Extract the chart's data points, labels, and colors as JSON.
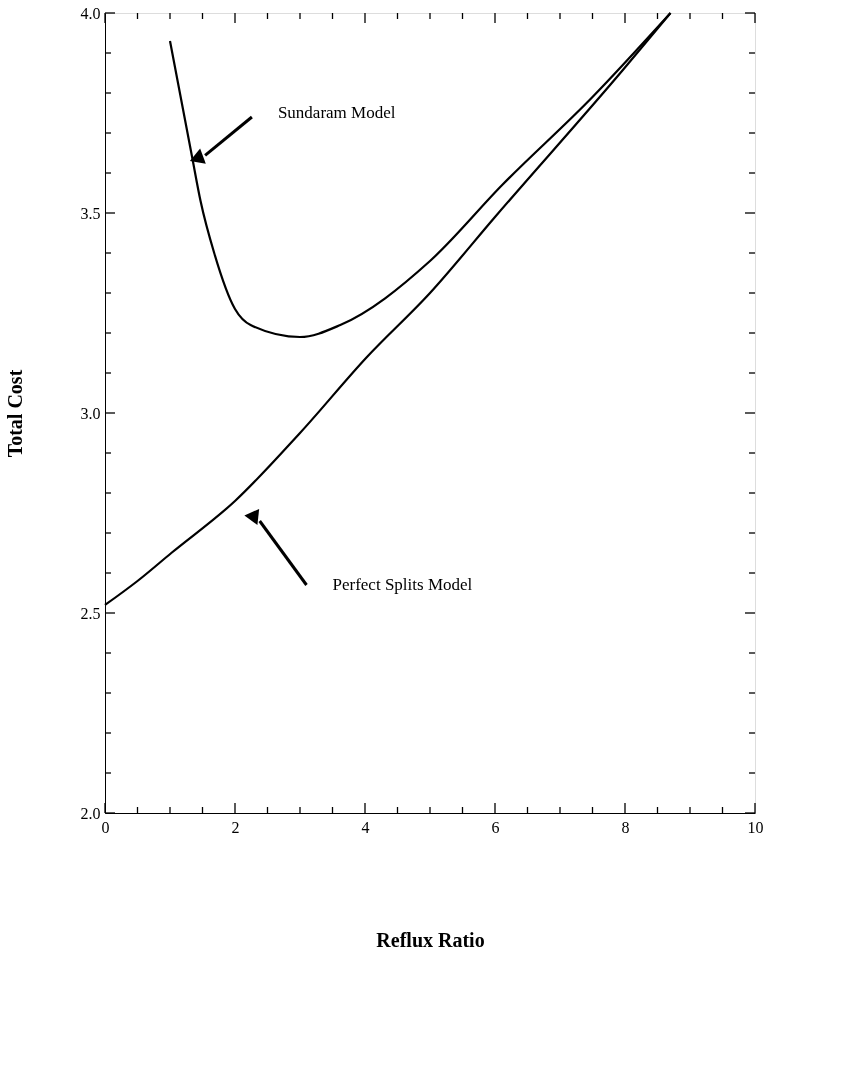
{
  "chart_data": {
    "type": "line",
    "xlabel": "Reflux  Ratio",
    "ylabel": "Total Cost",
    "series": [
      {
        "color": "#000000",
        "x": [
          1.0,
          1.34,
          1.47,
          1.68,
          2.0,
          2.24,
          3.0,
          3.62,
          5.0,
          6.11,
          7.5,
          8.7
        ],
        "values": [
          3.93,
          3.64,
          3.53,
          3.4,
          3.26,
          3.22,
          3.19,
          3.22,
          3.38,
          3.57,
          3.79,
          4.0
        ]
      },
      {
        "color": "#000000",
        "x": [
          0,
          0.5,
          1.02,
          2.0,
          3.0,
          4.03,
          5.0,
          6.0,
          7.98,
          8.7
        ],
        "values": [
          2.52,
          2.58,
          2.65,
          2.78,
          2.95,
          3.14,
          3.3,
          3.49,
          3.86,
          4.0
        ]
      }
    ],
    "annotations": [
      "Sundaram Model",
      "Perfect Splits Model"
    ],
    "xlim": [
      0,
      10
    ],
    "ylim": [
      2.0,
      4.0
    ],
    "xticks": [
      0,
      {
        "value": 0.5,
        "label": null
      },
      {
        "value": 1,
        "label": null
      },
      {
        "value": 1.5,
        "label": null
      },
      2,
      {
        "value": 2.5,
        "label": null
      },
      {
        "value": 3,
        "label": null
      },
      {
        "value": 3.5,
        "label": null
      },
      4,
      {
        "value": 4.5,
        "label": null
      },
      {
        "value": 5,
        "label": null
      },
      {
        "value": 5.5,
        "label": null
      },
      6,
      {
        "value": 6.5,
        "label": null
      },
      {
        "value": 7,
        "label": null
      },
      {
        "value": 7.5,
        "label": null
      },
      8,
      {
        "value": 8.5,
        "label": null
      },
      {
        "value": 9,
        "label": null
      },
      {
        "value": 9.5,
        "label": null
      },
      10
    ],
    "yticks": [
      {
        "value": 2.0,
        "label": "2.0"
      },
      {
        "value": 2.1,
        "label": null
      },
      {
        "value": 2.2,
        "label": null
      },
      {
        "value": 2.3,
        "label": null
      },
      {
        "value": 2.4,
        "label": null
      },
      {
        "value": 2.5,
        "label": "2.5"
      },
      {
        "value": 2.6,
        "label": null
      },
      {
        "value": 2.7,
        "label": null
      },
      {
        "value": 2.8,
        "label": null
      },
      {
        "value": 2.9,
        "label": null
      },
      {
        "value": 3.0,
        "label": "3.0"
      },
      {
        "value": 3.1,
        "label": null
      },
      {
        "value": 3.2,
        "label": null
      },
      {
        "value": 3.3,
        "label": null
      },
      {
        "value": 3.4,
        "label": null
      },
      {
        "value": 3.5,
        "label": "3.5"
      },
      {
        "value": 3.6,
        "label": null
      },
      {
        "value": 3.7,
        "label": null
      },
      {
        "value": 3.8,
        "label": null
      },
      {
        "value": 3.9,
        "label": null
      },
      {
        "value": 4.0,
        "label": "4.0"
      }
    ],
    "grid": false,
    "marker": "none",
    "line_style": "solid"
  }
}
